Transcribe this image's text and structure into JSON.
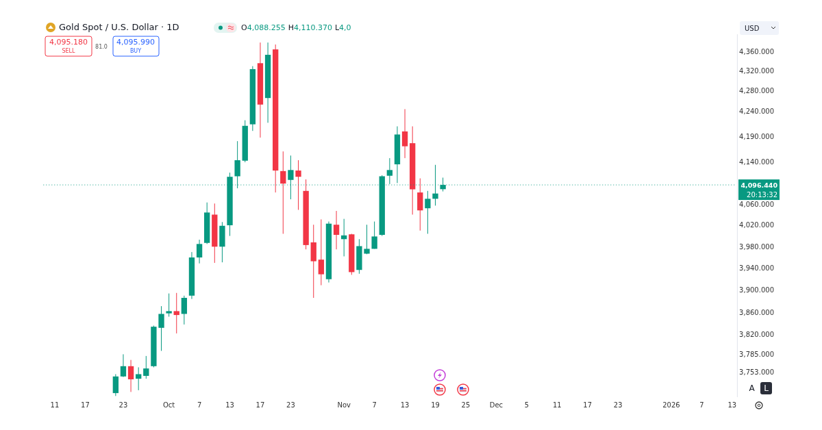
{
  "chart_data": {
    "type": "candlestick",
    "title": "Gold Spot / U.S. Dollar · 1D",
    "categories": [
      null,
      "11",
      null,
      null,
      null,
      "17",
      null,
      null,
      null,
      null,
      "23",
      null,
      null,
      null,
      null,
      null,
      "Oct",
      null,
      null,
      null,
      "7",
      null,
      null,
      null,
      "13",
      null,
      null,
      null,
      "17",
      null,
      null,
      null,
      "23",
      null,
      null,
      null,
      null,
      null,
      null,
      "Nov",
      null,
      null,
      null,
      "7",
      null,
      null,
      null,
      "13",
      null,
      null,
      null,
      "19",
      null,
      null,
      null,
      "25",
      null,
      null,
      null,
      "Dec",
      null,
      null,
      null,
      "5",
      null,
      null,
      null,
      "11",
      null,
      null,
      null,
      "17",
      null,
      null,
      null,
      "23",
      null,
      null,
      null,
      null,
      null,
      null,
      "2026",
      null,
      null,
      null,
      "7",
      null,
      null,
      null,
      "13"
    ],
    "ohlc": [
      null,
      null,
      null,
      null,
      null,
      null,
      null,
      null,
      null,
      [
        3717,
        3750,
        3712,
        3746
      ],
      [
        3746,
        3785,
        3745,
        3764
      ],
      [
        3764,
        3775,
        3719,
        3741
      ],
      [
        3742,
        3762,
        3722,
        3750
      ],
      [
        3747,
        3782,
        3742,
        3760
      ],
      [
        3764,
        3836,
        3762,
        3834
      ],
      [
        3832,
        3871,
        3791,
        3857
      ],
      [
        3858,
        3894,
        3852,
        3862
      ],
      [
        3862,
        3895,
        3822,
        3855
      ],
      [
        3857,
        3890,
        3838,
        3886
      ],
      [
        3890,
        3970,
        3884,
        3960
      ],
      [
        3960,
        3993,
        3949,
        3985
      ],
      [
        3987,
        4063,
        3985,
        4044
      ],
      [
        4040,
        4061,
        3950,
        3980
      ],
      [
        3980,
        4026,
        3951,
        4019
      ],
      [
        4020,
        4120,
        4000,
        4112
      ],
      [
        4113,
        4181,
        4090,
        4144
      ],
      [
        4143,
        4222,
        4140,
        4211
      ],
      [
        4214,
        4330,
        4201,
        4324
      ],
      [
        4336,
        4378,
        4188,
        4253
      ],
      [
        4266,
        4378,
        4217,
        4353
      ],
      [
        4364,
        4374,
        4082,
        4124
      ],
      [
        4123,
        4161,
        4004,
        4099
      ],
      [
        4106,
        4153,
        4069,
        4125
      ],
      [
        4124,
        4144,
        4049,
        4112
      ],
      [
        4085,
        4107,
        3975,
        3983
      ],
      [
        3988,
        4021,
        3886,
        3953
      ],
      [
        3956,
        4031,
        3909,
        3929
      ],
      [
        3920,
        4027,
        3914,
        4023
      ],
      [
        4021,
        4047,
        3975,
        4002
      ],
      [
        3994,
        4032,
        3962,
        4001
      ],
      [
        4003,
        4004,
        3928,
        3933
      ],
      [
        3937,
        3994,
        3930,
        3981
      ],
      [
        3967,
        4021,
        3966,
        3976
      ],
      [
        3976,
        4027,
        3976,
        3999
      ],
      [
        4002,
        4115,
        4000,
        4113
      ],
      [
        4114,
        4148,
        4098,
        4125
      ],
      [
        4136,
        4210,
        4100,
        4194
      ],
      [
        4200,
        4244,
        4148,
        4171
      ],
      [
        4177,
        4210,
        4040,
        4088
      ],
      [
        4082,
        4109,
        4010,
        4048
      ],
      [
        4052,
        4085,
        4004,
        4070
      ],
      [
        4070,
        4135,
        4057,
        4080
      ],
      [
        4088.255,
        4110.37,
        4084,
        4096.44
      ],
      null,
      null,
      null,
      null,
      null,
      null,
      null,
      null,
      null,
      null,
      null,
      null,
      null,
      null,
      null,
      null,
      null,
      null,
      null,
      null,
      null,
      null,
      null,
      null,
      null,
      null,
      null,
      null,
      null,
      null,
      null,
      null,
      null,
      null,
      null,
      null,
      null,
      null
    ],
    "colors": [
      null,
      null,
      null,
      null,
      null,
      null,
      null,
      null,
      null,
      "#089981",
      "#089981",
      "#f23645",
      "#089981",
      "#089981",
      "#089981",
      "#089981",
      "#089981",
      "#f23645",
      "#089981",
      "#089981",
      "#089981",
      "#089981",
      "#f23645",
      "#089981",
      "#089981",
      "#089981",
      "#089981",
      "#089981",
      "#f23645",
      "#089981",
      "#f23645",
      "#f23645",
      "#089981",
      "#f23645",
      "#f23645",
      "#f23645",
      "#f23645",
      "#089981",
      "#f23645",
      "#089981",
      "#f23645",
      "#089981",
      "#089981",
      "#089981",
      "#089981",
      "#089981",
      "#089981",
      "#f23645",
      "#f23645",
      "#f23645",
      "#089981",
      "#089981",
      "#089981",
      null,
      null,
      null,
      null,
      null,
      null,
      null,
      null,
      null,
      null,
      null,
      null,
      null,
      null,
      null,
      null,
      null,
      null,
      null,
      null,
      null,
      null,
      null,
      null,
      null,
      null,
      null,
      null,
      null,
      null,
      null,
      null,
      null,
      null,
      null,
      null,
      null,
      null
    ],
    "log": "y",
    "ylim": [
      3710,
      4395
    ],
    "yticks": [
      {
        "value": 3753,
        "label": "3,753.000"
      },
      {
        "value": 3785,
        "label": "3,785.000"
      },
      {
        "value": 3820,
        "label": "3,820.000"
      },
      {
        "value": 3860,
        "label": "3,860.000"
      },
      {
        "value": 3900,
        "label": "3,900.000"
      },
      {
        "value": 3940,
        "label": "3,940.000"
      },
      {
        "value": 3980,
        "label": "3,980.000"
      },
      {
        "value": 4020,
        "label": "4,020.000"
      },
      {
        "value": 4060,
        "label": "4,060.000"
      },
      {
        "value": 4140,
        "label": "4,140.000"
      },
      {
        "value": 4190,
        "label": "4,190.000"
      },
      {
        "value": 4240,
        "label": "4,240.000"
      },
      {
        "value": 4280,
        "label": "4,280.000"
      },
      {
        "value": 4320,
        "label": "4,320.000"
      },
      {
        "value": 4360,
        "label": "4,360.000"
      }
    ],
    "ref_lines": [
      {
        "axis": "y",
        "value": 4096.44,
        "label": "4,096.440",
        "color": "#089981",
        "line_style": "dotted"
      }
    ],
    "annotations": [
      "O4,088.255",
      "H4,110.370",
      "L4,0",
      "4,095.180",
      "SELL",
      "81.0",
      "4,095.990",
      "BUY",
      "USD",
      "20:13:32",
      "A",
      "L"
    ],
    "grid": false
  }
}
